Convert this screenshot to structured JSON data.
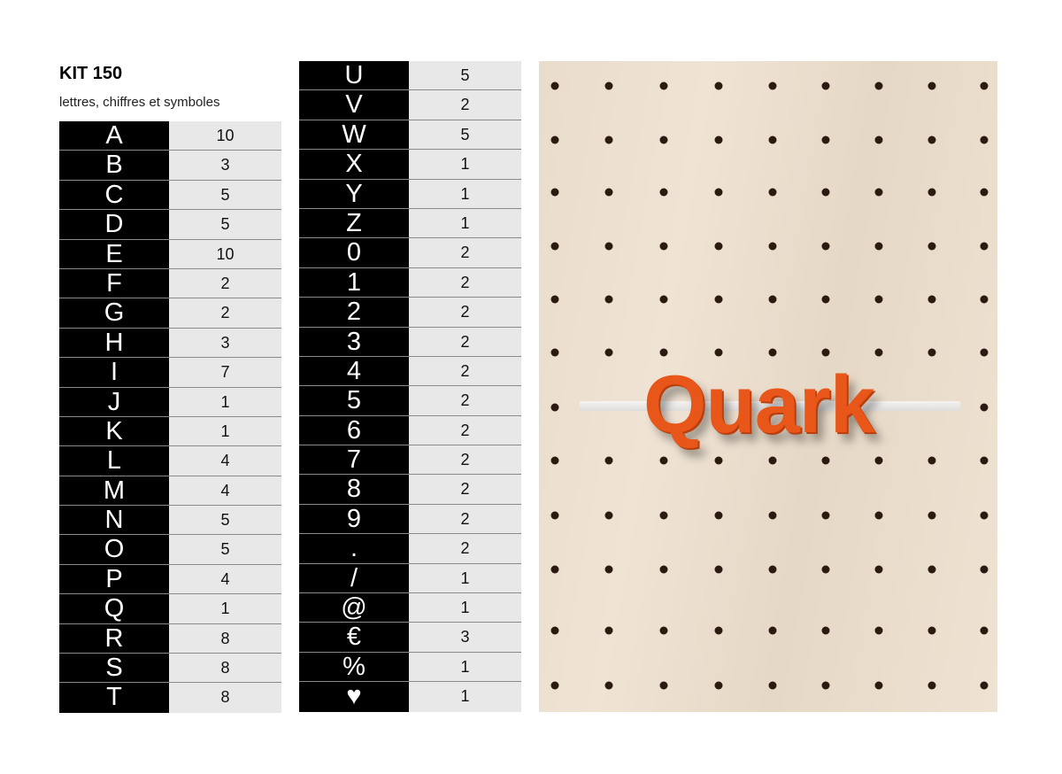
{
  "header": {
    "title": "KIT 150",
    "subtitle": "lettres, chiffres et symboles"
  },
  "table_left": [
    {
      "char": "A",
      "count": "10"
    },
    {
      "char": "B",
      "count": "3"
    },
    {
      "char": "C",
      "count": "5"
    },
    {
      "char": "D",
      "count": "5"
    },
    {
      "char": "E",
      "count": "10"
    },
    {
      "char": "F",
      "count": "2"
    },
    {
      "char": "G",
      "count": "2"
    },
    {
      "char": "H",
      "count": "3"
    },
    {
      "char": "I",
      "count": "7"
    },
    {
      "char": "J",
      "count": "1"
    },
    {
      "char": "K",
      "count": "1"
    },
    {
      "char": "L",
      "count": "4"
    },
    {
      "char": "M",
      "count": "4"
    },
    {
      "char": "N",
      "count": "5"
    },
    {
      "char": "O",
      "count": "5"
    },
    {
      "char": "P",
      "count": "4"
    },
    {
      "char": "Q",
      "count": "1"
    },
    {
      "char": "R",
      "count": "8"
    },
    {
      "char": "S",
      "count": "8"
    },
    {
      "char": "T",
      "count": "8"
    }
  ],
  "table_right": [
    {
      "char": "U",
      "count": "5"
    },
    {
      "char": "V",
      "count": "2"
    },
    {
      "char": "W",
      "count": "5"
    },
    {
      "char": "X",
      "count": "1"
    },
    {
      "char": "Y",
      "count": "1"
    },
    {
      "char": "Z",
      "count": "1"
    },
    {
      "char": "0",
      "count": "2"
    },
    {
      "char": "1",
      "count": "2"
    },
    {
      "char": "2",
      "count": "2"
    },
    {
      "char": "3",
      "count": "2"
    },
    {
      "char": "4",
      "count": "2"
    },
    {
      "char": "5",
      "count": "2"
    },
    {
      "char": "6",
      "count": "2"
    },
    {
      "char": "7",
      "count": "2"
    },
    {
      "char": "8",
      "count": "2"
    },
    {
      "char": "9",
      "count": "2"
    },
    {
      "char": ".",
      "count": "2"
    },
    {
      "char": "/",
      "count": "1"
    },
    {
      "char": "@",
      "count": "1"
    },
    {
      "char": "€",
      "count": "3"
    },
    {
      "char": "%",
      "count": "1"
    },
    {
      "char": "♥",
      "count": "1",
      "icon": "heart-icon"
    }
  ],
  "photo": {
    "logo_text": "Quark",
    "logo_color": "#e8561a"
  }
}
